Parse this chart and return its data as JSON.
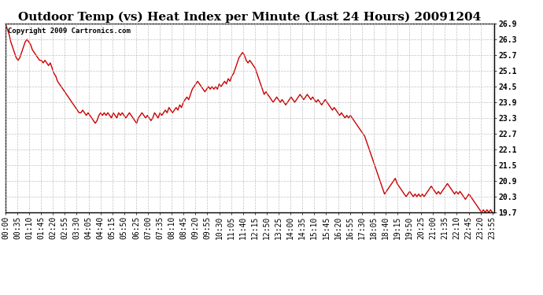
{
  "title": "Outdoor Temp (vs) Heat Index per Minute (Last 24 Hours) 20091204",
  "copyright_text": "Copyright 2009 Cartronics.com",
  "line_color": "#cc0000",
  "bg_color": "#ffffff",
  "grid_color": "#bbbbbb",
  "ylim": [
    19.7,
    26.9
  ],
  "yticks": [
    19.7,
    20.3,
    20.9,
    21.5,
    22.1,
    22.7,
    23.3,
    23.9,
    24.5,
    25.1,
    25.7,
    26.3,
    26.9
  ],
  "xlabel_rotation": 90,
  "title_fontsize": 11,
  "tick_fontsize": 7,
  "x_tick_labels": [
    "00:00",
    "00:35",
    "01:10",
    "01:45",
    "02:20",
    "02:55",
    "03:30",
    "04:05",
    "04:40",
    "05:15",
    "05:50",
    "06:25",
    "07:00",
    "07:35",
    "08:10",
    "08:45",
    "09:20",
    "09:55",
    "10:30",
    "11:05",
    "11:40",
    "12:15",
    "12:50",
    "13:25",
    "14:00",
    "14:35",
    "15:10",
    "15:45",
    "16:20",
    "16:55",
    "17:30",
    "18:05",
    "18:40",
    "19:15",
    "19:50",
    "20:25",
    "21:00",
    "21:35",
    "22:10",
    "22:45",
    "23:20",
    "23:55"
  ],
  "data_y_values": [
    26.9,
    26.7,
    26.5,
    26.2,
    26.0,
    25.8,
    25.6,
    25.5,
    25.6,
    25.8,
    26.0,
    26.2,
    26.3,
    26.2,
    26.1,
    25.9,
    25.8,
    25.7,
    25.6,
    25.5,
    25.5,
    25.4,
    25.5,
    25.4,
    25.3,
    25.4,
    25.2,
    25.0,
    24.9,
    24.7,
    24.6,
    24.5,
    24.4,
    24.3,
    24.2,
    24.1,
    24.0,
    23.9,
    23.8,
    23.7,
    23.6,
    23.5,
    23.5,
    23.6,
    23.5,
    23.4,
    23.5,
    23.4,
    23.3,
    23.2,
    23.1,
    23.2,
    23.4,
    23.5,
    23.4,
    23.5,
    23.4,
    23.5,
    23.4,
    23.3,
    23.5,
    23.4,
    23.3,
    23.5,
    23.4,
    23.5,
    23.4,
    23.3,
    23.4,
    23.5,
    23.4,
    23.3,
    23.2,
    23.1,
    23.3,
    23.4,
    23.5,
    23.4,
    23.3,
    23.4,
    23.3,
    23.2,
    23.3,
    23.5,
    23.4,
    23.3,
    23.5,
    23.4,
    23.5,
    23.6,
    23.5,
    23.7,
    23.6,
    23.5,
    23.6,
    23.7,
    23.6,
    23.8,
    23.7,
    23.9,
    24.0,
    24.1,
    24.0,
    24.2,
    24.4,
    24.5,
    24.6,
    24.7,
    24.6,
    24.5,
    24.4,
    24.3,
    24.4,
    24.5,
    24.4,
    24.5,
    24.4,
    24.5,
    24.4,
    24.6,
    24.5,
    24.6,
    24.7,
    24.6,
    24.8,
    24.7,
    24.9,
    25.0,
    25.2,
    25.4,
    25.6,
    25.7,
    25.8,
    25.7,
    25.5,
    25.4,
    25.5,
    25.4,
    25.3,
    25.2,
    25.0,
    24.8,
    24.6,
    24.4,
    24.2,
    24.3,
    24.2,
    24.1,
    24.0,
    23.9,
    24.0,
    24.1,
    24.0,
    23.9,
    24.0,
    23.9,
    23.8,
    23.9,
    24.0,
    24.1,
    24.0,
    23.9,
    24.0,
    24.1,
    24.2,
    24.1,
    24.0,
    24.1,
    24.2,
    24.1,
    24.0,
    24.1,
    24.0,
    23.9,
    24.0,
    23.9,
    23.8,
    23.9,
    24.0,
    23.9,
    23.8,
    23.7,
    23.6,
    23.7,
    23.6,
    23.5,
    23.4,
    23.5,
    23.4,
    23.3,
    23.4,
    23.3,
    23.4,
    23.3,
    23.2,
    23.1,
    23.0,
    22.9,
    22.8,
    22.7,
    22.6,
    22.4,
    22.2,
    22.0,
    21.8,
    21.6,
    21.4,
    21.2,
    21.0,
    20.8,
    20.6,
    20.4,
    20.5,
    20.6,
    20.7,
    20.8,
    20.9,
    21.0,
    20.8,
    20.7,
    20.6,
    20.5,
    20.4,
    20.3,
    20.4,
    20.5,
    20.4,
    20.3,
    20.4,
    20.3,
    20.4,
    20.3,
    20.4,
    20.3,
    20.4,
    20.5,
    20.6,
    20.7,
    20.6,
    20.5,
    20.4,
    20.5,
    20.4,
    20.5,
    20.6,
    20.7,
    20.8,
    20.7,
    20.6,
    20.5,
    20.4,
    20.5,
    20.4,
    20.5,
    20.4,
    20.3,
    20.2,
    20.3,
    20.4,
    20.3,
    20.2,
    20.1,
    20.0,
    19.9,
    19.8,
    19.7,
    19.8,
    19.7,
    19.8,
    19.7,
    19.8,
    19.7
  ]
}
